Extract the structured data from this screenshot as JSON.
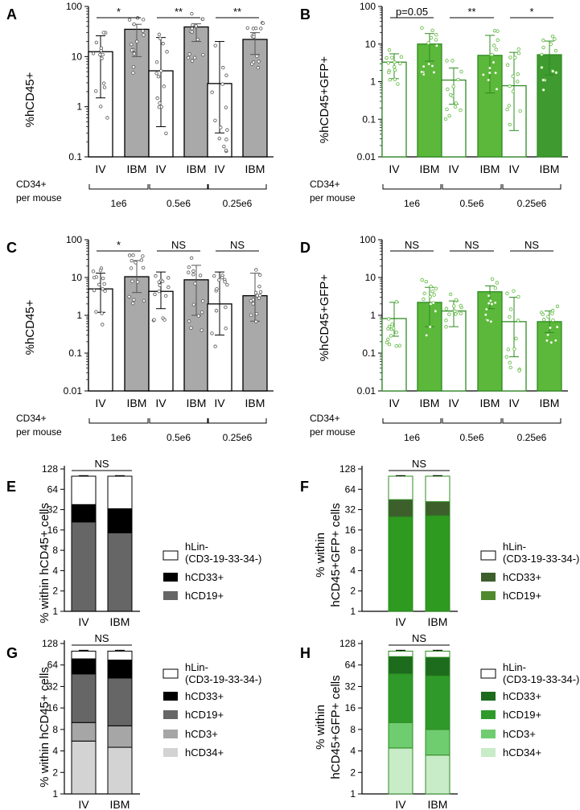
{
  "panels": {
    "A": {
      "letter": "A",
      "ylabel": "%hCD45+",
      "yticks": [
        "0.1",
        "1",
        "10",
        "100"
      ]
    },
    "B": {
      "letter": "B",
      "ylabel": "%hCD45+GFP+",
      "yticks": [
        "0.01",
        "0.1",
        "1",
        "10",
        "100"
      ]
    },
    "C": {
      "letter": "C",
      "ylabel": "%hCD45+",
      "yticks": [
        "0.01",
        "0.1",
        "1",
        "10",
        "100"
      ]
    },
    "D": {
      "letter": "D",
      "ylabel": "%hCD45+GFP+",
      "yticks": [
        "0.01",
        "0.1",
        "1",
        "10",
        "100"
      ]
    },
    "E": {
      "letter": "E",
      "ylabel": "% within hCD45+ cells",
      "yticks": [
        "1",
        "2",
        "4",
        "8",
        "16",
        "32",
        "64",
        "128"
      ]
    },
    "F": {
      "letter": "F",
      "ylabel1": "% within",
      "ylabel2": "hCD45+GFP+ cells",
      "yticks": [
        "1",
        "2",
        "4",
        "8",
        "16",
        "32",
        "64",
        "128"
      ]
    },
    "G": {
      "letter": "G",
      "ylabel": "% within hCD45+ cells",
      "yticks": [
        "1",
        "2",
        "4",
        "8",
        "16",
        "32",
        "64",
        "128"
      ]
    },
    "H": {
      "letter": "H",
      "ylabel1": "% within",
      "ylabel2": "hCD45+GFP+ cells",
      "yticks": [
        "1",
        "2",
        "4",
        "8",
        "16",
        "32",
        "64",
        "128"
      ]
    }
  },
  "labels": {
    "cd34": "CD34+",
    "per_mouse": "per mouse",
    "groups": [
      "1e6",
      "0.5e6",
      "0.25e6"
    ],
    "iv": "IV",
    "ibm": "IBM"
  },
  "legend": {
    "hlin_1": "hLin-",
    "hlin_2": "(CD3-19-33-34-)",
    "hcd33": "hCD33+",
    "hcd19": "hCD19+",
    "hcd3": "hCD3+",
    "hcd34": "hCD34+"
  },
  "colors": {
    "gray_bar": "#a9a9a9",
    "green_bar": "#5cb83a",
    "green_dark": "#2e8b22",
    "black": "#000000",
    "dark_gray": "#666666",
    "light_gray": "#a6a6a6",
    "lighter_gray": "#d3d3d3",
    "green_hcd33_F": "#3c5f2c",
    "green_hcd19_F": "#4f8a2e",
    "green_hcd33_H": "#1d6b1d",
    "green_hcd19_H": "#2f9a2a",
    "green_hcd3_H": "#6fcc6f",
    "green_hcd34_H": "#c7ecc7"
  },
  "chart_data": [
    {
      "panel": "A",
      "type": "bar",
      "scale": "log",
      "ylim": [
        0.1,
        100
      ],
      "categories": [
        "IV",
        "IBM",
        "IV",
        "IBM",
        "IV",
        "IBM"
      ],
      "groups": [
        "1e6",
        "0.5e6",
        "0.25e6"
      ],
      "values": [
        12.5,
        35,
        5.2,
        39,
        2.9,
        22
      ],
      "errors": [
        [
          1.5,
          26
        ],
        [
          10,
          44
        ],
        [
          0.4,
          24
        ],
        [
          20,
          45
        ],
        [
          0.3,
          20
        ],
        [
          11,
          30
        ]
      ],
      "significance": [
        "*",
        "**",
        "**"
      ]
    },
    {
      "panel": "B",
      "type": "bar",
      "scale": "log",
      "ylim": [
        0.01,
        100
      ],
      "categories": [
        "IV",
        "IBM",
        "IV",
        "IBM",
        "IV",
        "IBM"
      ],
      "groups": [
        "1e6",
        "0.5e6",
        "0.25e6"
      ],
      "values": [
        3.3,
        10,
        1.1,
        5,
        0.78,
        5.2
      ],
      "errors": [
        [
          1.2,
          5.5
        ],
        [
          3.5,
          19
        ],
        [
          0.25,
          2.3
        ],
        [
          0.5,
          17
        ],
        [
          0.05,
          6
        ],
        [
          1.5,
          12
        ]
      ],
      "significance": [
        "p=0.05",
        "**",
        "*"
      ]
    },
    {
      "panel": "C",
      "type": "bar",
      "scale": "log",
      "ylim": [
        0.01,
        100
      ],
      "categories": [
        "IV",
        "IBM",
        "IV",
        "IBM",
        "IV",
        "IBM"
      ],
      "groups": [
        "1e6",
        "0.5e6",
        "0.25e6"
      ],
      "values": [
        5,
        10.5,
        4.3,
        8.7,
        2,
        3.3
      ],
      "errors": [
        [
          1.2,
          13
        ],
        [
          4,
          28
        ],
        [
          1.5,
          14
        ],
        [
          1,
          21
        ],
        [
          0.3,
          14
        ],
        [
          0.7,
          13
        ]
      ],
      "significance": [
        "*",
        "NS",
        "NS"
      ]
    },
    {
      "panel": "D",
      "type": "bar",
      "scale": "log",
      "ylim": [
        0.01,
        100
      ],
      "categories": [
        "IV",
        "IBM",
        "IV",
        "IBM",
        "IV",
        "IBM"
      ],
      "groups": [
        "1e6",
        "0.5e6",
        "0.25e6"
      ],
      "values": [
        0.82,
        2.2,
        1.3,
        4.2,
        0.68,
        0.68
      ],
      "errors": [
        [
          0.28,
          2.2
        ],
        [
          0.5,
          5.5
        ],
        [
          0.5,
          2.4
        ],
        [
          1.5,
          6
        ],
        [
          0.08,
          3
        ],
        [
          0.35,
          1.3
        ]
      ],
      "significance": [
        "NS",
        "NS",
        "NS"
      ]
    },
    {
      "panel": "E",
      "type": "stacked-bar",
      "scale": "log2",
      "ylim": [
        1,
        128
      ],
      "categories": [
        "IV",
        "IBM"
      ],
      "significance": "NS",
      "series": [
        {
          "name": "hCD19+",
          "top": [
            21,
            14.5
          ],
          "err": [
            24,
            17
          ]
        },
        {
          "name": "hCD33+",
          "top": [
            38,
            33
          ],
          "err": [
            40,
            35
          ]
        },
        {
          "name": "hLin-",
          "top": [
            100,
            100
          ],
          "err": [
            102,
            102
          ]
        }
      ]
    },
    {
      "panel": "F",
      "type": "stacked-bar",
      "scale": "log2",
      "ylim": [
        1,
        128
      ],
      "categories": [
        "IV",
        "IBM"
      ],
      "significance": "NS",
      "series": [
        {
          "name": "hCD19+",
          "top": [
            25,
            26
          ],
          "err": [
            27,
            28
          ]
        },
        {
          "name": "hCD33+",
          "top": [
            45,
            42
          ],
          "err": [
            52,
            45
          ]
        },
        {
          "name": "hLin-",
          "top": [
            100,
            100
          ],
          "err": [
            102,
            102
          ]
        }
      ]
    },
    {
      "panel": "G",
      "type": "stacked-bar",
      "scale": "log2",
      "ylim": [
        1,
        128
      ],
      "categories": [
        "IV",
        "IBM"
      ],
      "significance": "NS",
      "series": [
        {
          "name": "hCD34+",
          "top": [
            5.5,
            4.5
          ],
          "err": [
            6.5,
            5.7
          ]
        },
        {
          "name": "hCD3+",
          "top": [
            10,
            9
          ],
          "err": [
            10.8,
            9.8
          ]
        },
        {
          "name": "hCD19+",
          "top": [
            48,
            42
          ],
          "err": [
            50,
            44
          ]
        },
        {
          "name": "hCD33+",
          "top": [
            78,
            75
          ],
          "err": [
            80,
            78
          ]
        },
        {
          "name": "hLin-",
          "top": [
            100,
            100
          ],
          "err": [
            103,
            103
          ]
        }
      ]
    },
    {
      "panel": "H",
      "type": "stacked-bar",
      "scale": "log2",
      "ylim": [
        1,
        128
      ],
      "categories": [
        "IV",
        "IBM"
      ],
      "significance": "NS",
      "series": [
        {
          "name": "hCD34+",
          "top": [
            4.4,
            3.5
          ],
          "err": [
            5.2,
            4.2
          ]
        },
        {
          "name": "hCD3+",
          "top": [
            10,
            8
          ],
          "err": [
            10.8,
            8.8
          ]
        },
        {
          "name": "hCD19+",
          "top": [
            48,
            45
          ],
          "err": [
            50,
            47
          ]
        },
        {
          "name": "hCD33+",
          "top": [
            84,
            82
          ],
          "err": [
            86,
            84
          ]
        },
        {
          "name": "hLin-",
          "top": [
            100,
            100
          ],
          "err": [
            103,
            103
          ]
        }
      ]
    }
  ]
}
